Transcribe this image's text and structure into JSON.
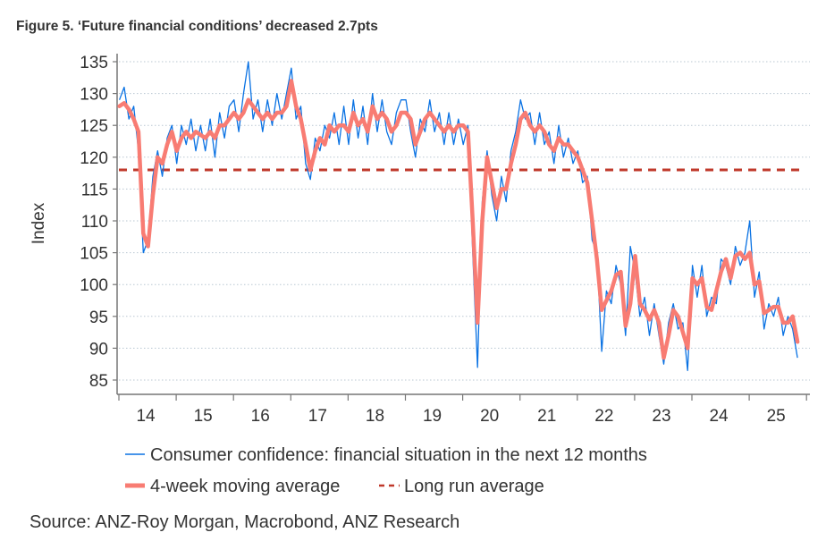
{
  "title": "Figure 5. ‘Future financial conditions’ decreased 2.7pts",
  "source": "Source: ANZ-Roy Morgan, Macrobond, ANZ Research",
  "chart_data": {
    "type": "line",
    "title": "Figure 5. ‘Future financial conditions’ decreased 2.7pts",
    "ylabel": "Index",
    "xlabel": "",
    "ylim": [
      84,
      136
    ],
    "yticks": [
      85,
      90,
      95,
      100,
      105,
      110,
      115,
      120,
      125,
      130,
      135
    ],
    "xlim": [
      "2014-01",
      "2025-12"
    ],
    "xtick_labels": [
      "14",
      "15",
      "16",
      "17",
      "18",
      "19",
      "20",
      "21",
      "22",
      "23",
      "24",
      "25"
    ],
    "grid": "horizontal dotted",
    "legend_placement": "bottom",
    "start": "2014-01",
    "frequency": "monthly",
    "series": [
      {
        "name": "Consumer confidence: financial situation in the next 12 months",
        "color": "#0a72e3",
        "style": "thin",
        "values": [
          129,
          131,
          126,
          128,
          121,
          105,
          107,
          117,
          121,
          117,
          123,
          125,
          119,
          125,
          122,
          126,
          121,
          125,
          121,
          126,
          120,
          127,
          123,
          128,
          129,
          124,
          130,
          135,
          126,
          129,
          124,
          129,
          125,
          130,
          126,
          130,
          134,
          126,
          128,
          119,
          116.5,
          123,
          121,
          125,
          123,
          127,
          122,
          128,
          122,
          129,
          123,
          128,
          122,
          130,
          124,
          129,
          124,
          122,
          127,
          129,
          129,
          124,
          120,
          126,
          124,
          129,
          124,
          127,
          122,
          127,
          122,
          126,
          122,
          125,
          105,
          87,
          113,
          121,
          114,
          110,
          117,
          113,
          121,
          124,
          129,
          126,
          127,
          122,
          127,
          122,
          124,
          119,
          125,
          120,
          123,
          119,
          121,
          116,
          117,
          107,
          105,
          89.5,
          99,
          97,
          103,
          100,
          92,
          106,
          102,
          95,
          98,
          92,
          97,
          92,
          87.5,
          94,
          97,
          93,
          94,
          86.5,
          103,
          98,
          103,
          95,
          98,
          97,
          104,
          103,
          100,
          106,
          103,
          105,
          110,
          98,
          102,
          93,
          97,
          95,
          98,
          92,
          95,
          93,
          88.5
        ]
      },
      {
        "name": "4-week moving average",
        "color": "#f87c73",
        "style": "thick",
        "values": [
          128,
          128.5,
          127.5,
          126,
          124,
          108,
          106,
          114,
          120,
          119,
          122,
          124,
          121,
          123,
          124,
          123,
          124,
          123.5,
          123,
          124,
          123,
          125,
          125,
          126,
          127,
          126,
          127,
          129,
          128,
          127,
          126,
          127,
          126,
          127,
          127,
          128,
          132,
          128,
          126,
          122,
          118,
          121,
          123,
          122,
          125,
          124,
          125,
          125,
          124,
          127,
          125,
          126,
          124,
          128,
          126,
          127,
          126,
          124,
          125,
          127,
          127,
          126,
          122,
          124,
          126,
          127,
          126,
          125,
          124,
          125,
          124,
          125,
          125,
          124,
          110,
          94,
          110,
          120,
          116,
          112,
          115,
          115,
          119,
          122,
          126,
          127,
          125,
          124,
          125,
          124,
          122,
          121,
          123,
          122,
          122,
          121,
          120,
          118,
          116,
          110,
          104,
          96,
          97.5,
          99,
          101.5,
          102,
          93.5,
          97,
          104.5,
          97,
          96,
          94.5,
          96,
          94,
          88.5,
          92,
          96,
          95,
          92.5,
          90,
          101,
          100,
          101,
          96.5,
          96,
          99,
          102,
          104,
          101,
          104.5,
          105,
          104,
          105,
          100,
          100.5,
          95.5,
          96,
          96.5,
          96.5,
          94,
          94,
          95,
          91
        ]
      },
      {
        "name": "Long run average",
        "color": "#c0392b",
        "style": "dashed",
        "value": 118
      }
    ]
  }
}
